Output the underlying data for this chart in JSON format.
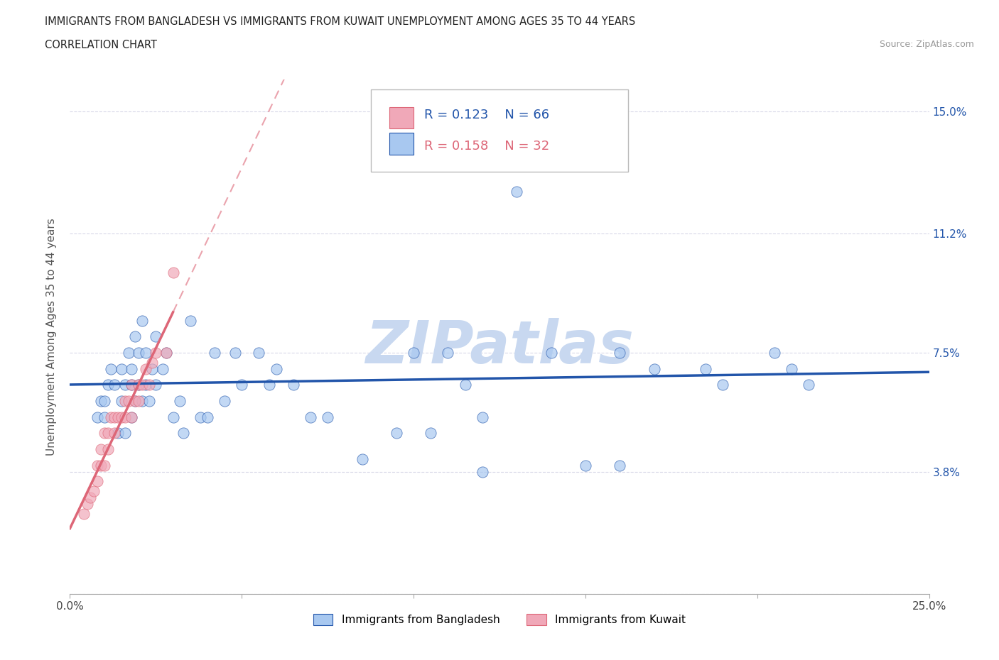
{
  "title_line1": "IMMIGRANTS FROM BANGLADESH VS IMMIGRANTS FROM KUWAIT UNEMPLOYMENT AMONG AGES 35 TO 44 YEARS",
  "title_line2": "CORRELATION CHART",
  "source": "Source: ZipAtlas.com",
  "ylabel": "Unemployment Among Ages 35 to 44 years",
  "xlim": [
    0.0,
    0.25
  ],
  "ylim": [
    0.0,
    0.16
  ],
  "yticks": [
    0.0,
    0.038,
    0.075,
    0.112,
    0.15
  ],
  "ytick_labels": [
    "",
    "3.8%",
    "7.5%",
    "11.2%",
    "15.0%"
  ],
  "xticks": [
    0.0,
    0.05,
    0.1,
    0.15,
    0.2,
    0.25
  ],
  "xtick_labels": [
    "0.0%",
    "",
    "",
    "",
    "",
    "25.0%"
  ],
  "background_color": "#ffffff",
  "grid_color": "#d8d8e8",
  "watermark": "ZIPatlas",
  "watermark_color": "#c8d8f0",
  "color_bangladesh": "#a8c8f0",
  "color_kuwait": "#f0a8b8",
  "trendline_bangladesh_color": "#2255aa",
  "trendline_kuwait_color": "#dd6677",
  "label_bangladesh": "Immigrants from Bangladesh",
  "label_kuwait": "Immigrants from Kuwait",
  "bangladesh_x": [
    0.008,
    0.009,
    0.01,
    0.01,
    0.011,
    0.012,
    0.013,
    0.014,
    0.015,
    0.015,
    0.016,
    0.016,
    0.017,
    0.018,
    0.018,
    0.018,
    0.019,
    0.019,
    0.02,
    0.02,
    0.021,
    0.021,
    0.022,
    0.022,
    0.023,
    0.024,
    0.025,
    0.025,
    0.027,
    0.028,
    0.03,
    0.032,
    0.033,
    0.035,
    0.038,
    0.04,
    0.042,
    0.045,
    0.048,
    0.05,
    0.055,
    0.058,
    0.06,
    0.065,
    0.07,
    0.075,
    0.085,
    0.09,
    0.095,
    0.1,
    0.105,
    0.11,
    0.115,
    0.12,
    0.13,
    0.14,
    0.15,
    0.16,
    0.17,
    0.185,
    0.19,
    0.205,
    0.21,
    0.215,
    0.16,
    0.12
  ],
  "bangladesh_y": [
    0.055,
    0.06,
    0.055,
    0.06,
    0.065,
    0.07,
    0.065,
    0.05,
    0.06,
    0.07,
    0.05,
    0.065,
    0.075,
    0.065,
    0.07,
    0.055,
    0.06,
    0.08,
    0.065,
    0.075,
    0.06,
    0.085,
    0.065,
    0.075,
    0.06,
    0.07,
    0.065,
    0.08,
    0.07,
    0.075,
    0.055,
    0.06,
    0.05,
    0.085,
    0.055,
    0.055,
    0.075,
    0.06,
    0.075,
    0.065,
    0.075,
    0.065,
    0.07,
    0.065,
    0.055,
    0.055,
    0.042,
    0.145,
    0.05,
    0.075,
    0.05,
    0.075,
    0.065,
    0.055,
    0.125,
    0.075,
    0.04,
    0.075,
    0.07,
    0.07,
    0.065,
    0.075,
    0.07,
    0.065,
    0.04,
    0.038
  ],
  "kuwait_x": [
    0.004,
    0.005,
    0.006,
    0.007,
    0.008,
    0.008,
    0.009,
    0.009,
    0.01,
    0.01,
    0.011,
    0.011,
    0.012,
    0.013,
    0.013,
    0.014,
    0.015,
    0.016,
    0.016,
    0.017,
    0.018,
    0.018,
    0.019,
    0.02,
    0.02,
    0.021,
    0.022,
    0.023,
    0.024,
    0.025,
    0.028,
    0.03
  ],
  "kuwait_y": [
    0.025,
    0.028,
    0.03,
    0.032,
    0.035,
    0.04,
    0.04,
    0.045,
    0.04,
    0.05,
    0.045,
    0.05,
    0.055,
    0.05,
    0.055,
    0.055,
    0.055,
    0.055,
    0.06,
    0.06,
    0.055,
    0.065,
    0.06,
    0.06,
    0.065,
    0.065,
    0.07,
    0.065,
    0.072,
    0.075,
    0.075,
    0.1
  ]
}
